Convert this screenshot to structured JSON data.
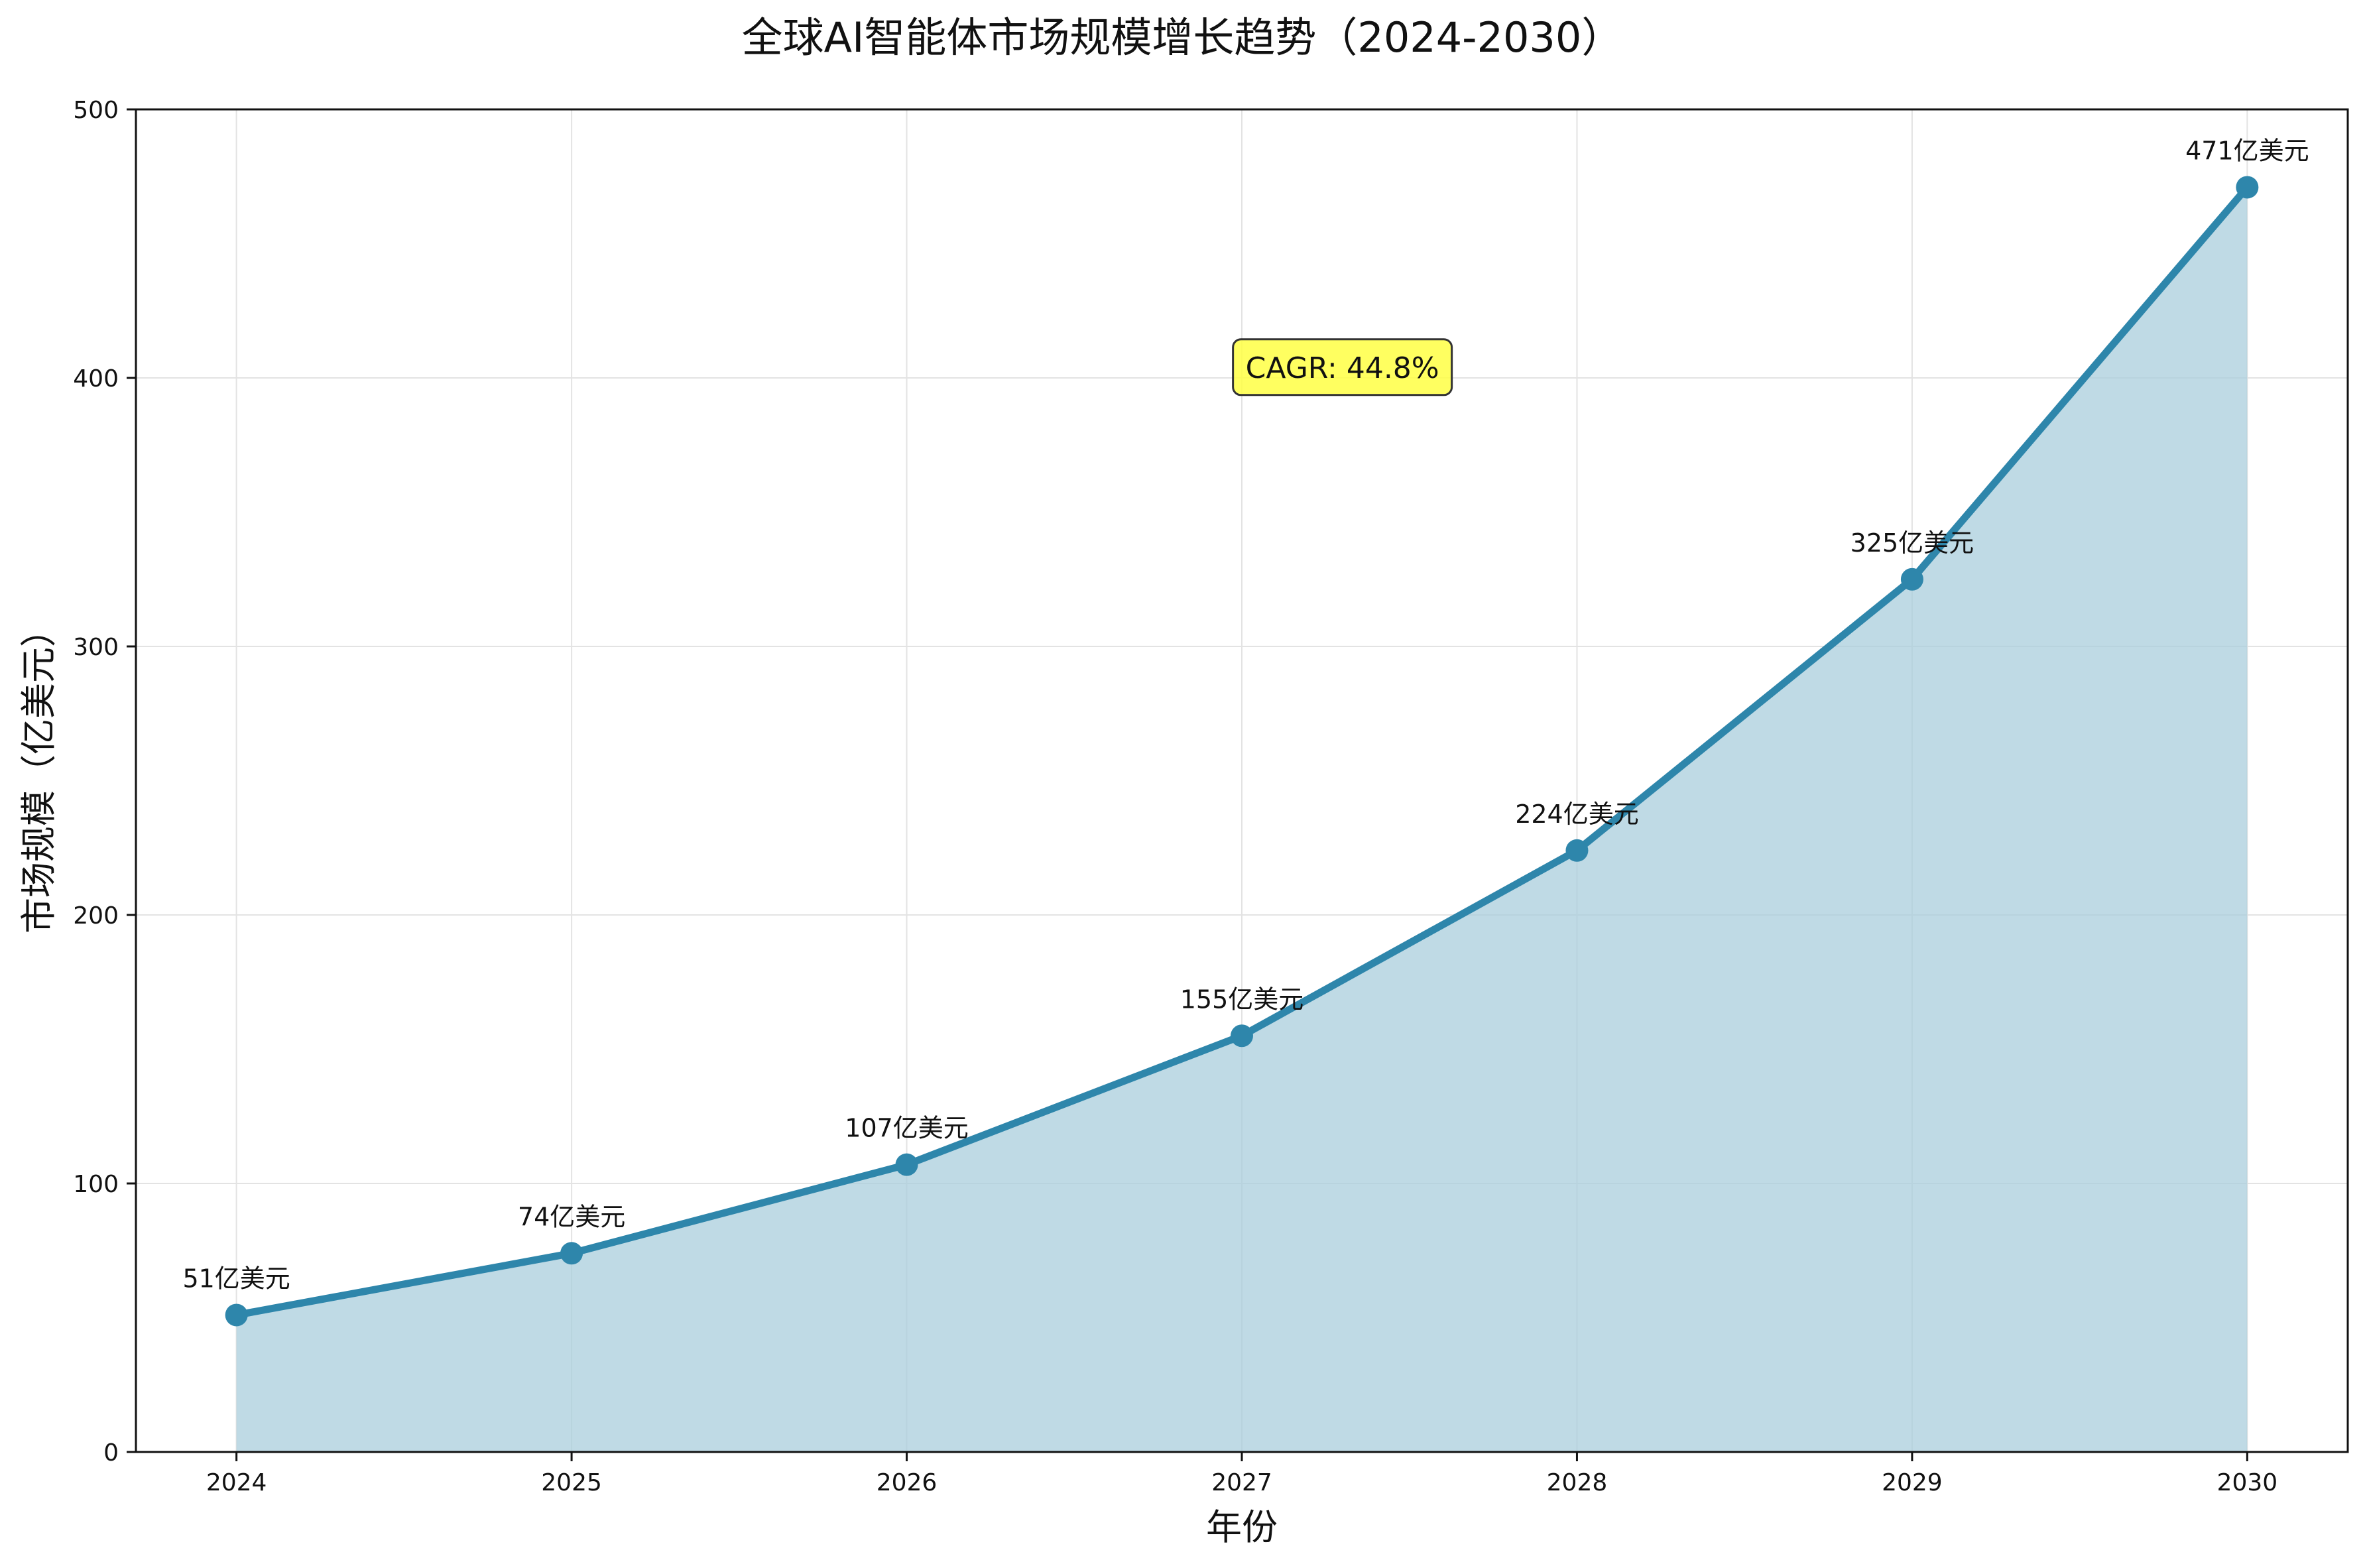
{
  "chart_data": {
    "type": "area",
    "title": "全球AI智能体市场规模增长趋势（2024-2030）",
    "xlabel": "年份",
    "ylabel": "市场规模（亿美元）",
    "x": [
      "2024",
      "2025",
      "2026",
      "2027",
      "2028",
      "2029",
      "2030"
    ],
    "series": [
      {
        "values": [
          51,
          74,
          107,
          155,
          224,
          325,
          471
        ],
        "labels": [
          "51亿美元",
          "74亿美元",
          "107亿美元",
          "155亿美元",
          "224亿美元",
          "325亿美元",
          "471亿美元"
        ]
      }
    ],
    "xlim": [
      2023.7,
      2030.3
    ],
    "ylim": [
      0,
      500
    ],
    "yticks": [
      "0",
      "100",
      "200",
      "300",
      "400",
      "500"
    ],
    "grid": true,
    "annotation": {
      "text": "CAGR: 44.8%",
      "x": 2027.3,
      "y": 404
    },
    "colors": {
      "line": "#2e86ab",
      "fill": "#a9cddc",
      "annotation_bg": "#ffff44",
      "grid": "#e3e3e3"
    }
  }
}
